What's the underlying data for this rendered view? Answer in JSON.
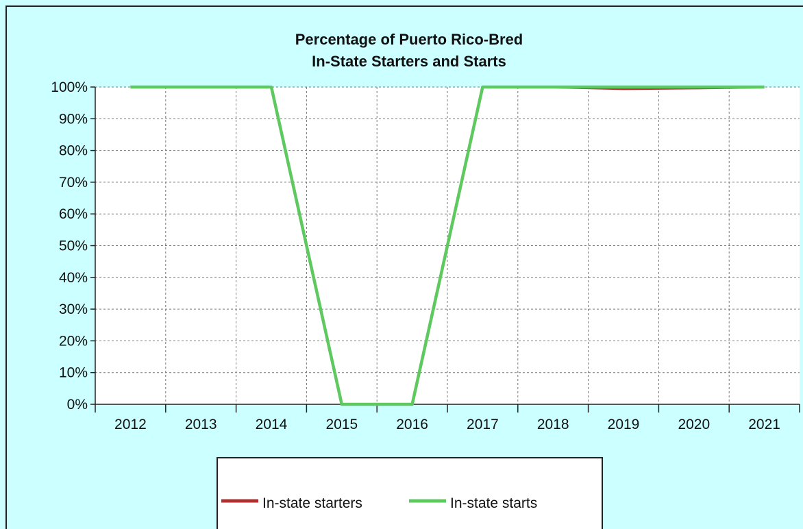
{
  "chart_data": {
    "type": "line",
    "title": [
      "Percentage of Puerto Rico-Bred",
      "In-State Starters and Starts"
    ],
    "categories": [
      "2012",
      "2013",
      "2014",
      "2015",
      "2016",
      "2017",
      "2018",
      "2019",
      "2020",
      "2021"
    ],
    "y_ticks": [
      "0%",
      "10%",
      "20%",
      "30%",
      "40%",
      "50%",
      "60%",
      "70%",
      "80%",
      "90%",
      "100%"
    ],
    "ylim": [
      0,
      100
    ],
    "grid": true,
    "legend_position": "bottom",
    "series": [
      {
        "name": "In-state starters",
        "color": "#b03030",
        "values": [
          100,
          100,
          100,
          0,
          0,
          100,
          100,
          99.5,
          99.7,
          100
        ]
      },
      {
        "name": "In-state starts",
        "color": "#5ec95e",
        "values": [
          100,
          100,
          100,
          0,
          0,
          100,
          100,
          100,
          100,
          100
        ]
      }
    ]
  }
}
